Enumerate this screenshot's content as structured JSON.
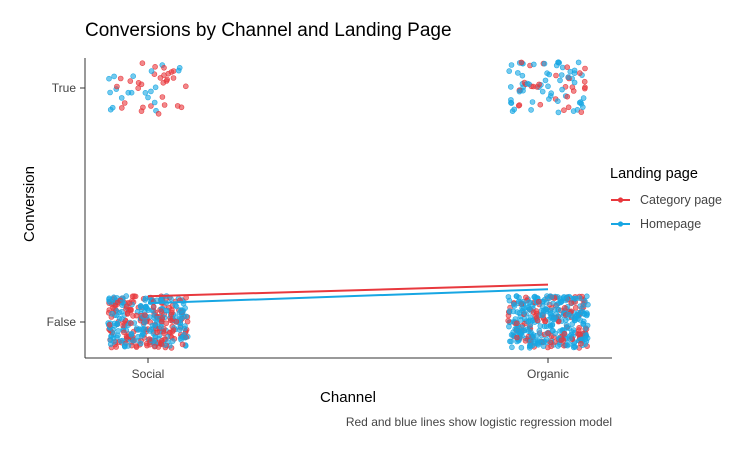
{
  "chart_data": {
    "type": "scatter",
    "title": "Conversions by Channel and Landing Page",
    "xlabel": "Channel",
    "ylabel": "Conversion",
    "x_categories": [
      "Social",
      "Organic"
    ],
    "y_categories": [
      "True",
      "False"
    ],
    "legend": {
      "title": "Landing page",
      "position": "right",
      "entries": [
        "Category page",
        "Homepage"
      ]
    },
    "series": [
      {
        "name": "Category page",
        "color": "#e8383d",
        "points": [
          {
            "x": "Social",
            "y": "True",
            "count": 30
          },
          {
            "x": "Social",
            "y": "False",
            "count": 180
          },
          {
            "x": "Organic",
            "y": "True",
            "count": 30
          },
          {
            "x": "Organic",
            "y": "False",
            "count": 120
          }
        ],
        "regression_line": [
          {
            "x": "Social",
            "y": 0.11
          },
          {
            "x": "Organic",
            "y": 0.16
          }
        ]
      },
      {
        "name": "Homepage",
        "color": "#17a6e3",
        "points": [
          {
            "x": "Social",
            "y": "True",
            "count": 20
          },
          {
            "x": "Social",
            "y": "False",
            "count": 200
          },
          {
            "x": "Organic",
            "y": "True",
            "count": 60
          },
          {
            "x": "Organic",
            "y": "False",
            "count": 300
          }
        ],
        "regression_line": [
          {
            "x": "Social",
            "y": 0.08
          },
          {
            "x": "Organic",
            "y": 0.14
          }
        ]
      }
    ],
    "grid": false,
    "caption": "Red and blue lines show logistic regression model"
  }
}
